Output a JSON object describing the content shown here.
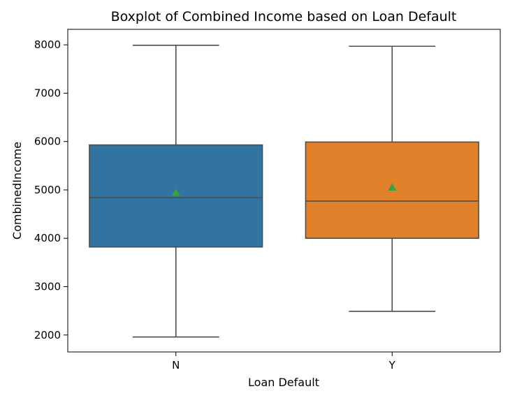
{
  "chart_data": {
    "type": "box",
    "title": "Boxplot of Combined Income based on Loan Default",
    "xlabel": "Loan Default",
    "ylabel": "CombinedIncome",
    "ylim": [
      1650,
      8320
    ],
    "yticks": [
      2000,
      3000,
      4000,
      5000,
      6000,
      7000,
      8000
    ],
    "grid": false,
    "categories": [
      "N",
      "Y"
    ],
    "boxes": [
      {
        "category": "N",
        "whisker_low": 1960,
        "q1": 3820,
        "median": 4840,
        "q3": 5930,
        "whisker_high": 7990,
        "mean": 4940,
        "color": "#3274a1"
      },
      {
        "category": "Y",
        "whisker_low": 2490,
        "q1": 4000,
        "median": 4770,
        "q3": 5990,
        "whisker_high": 7970,
        "mean": 5050,
        "color": "#e1812c"
      }
    ],
    "mean_marker_color": "#3ba13b",
    "line_color": "#4d4d4d"
  }
}
